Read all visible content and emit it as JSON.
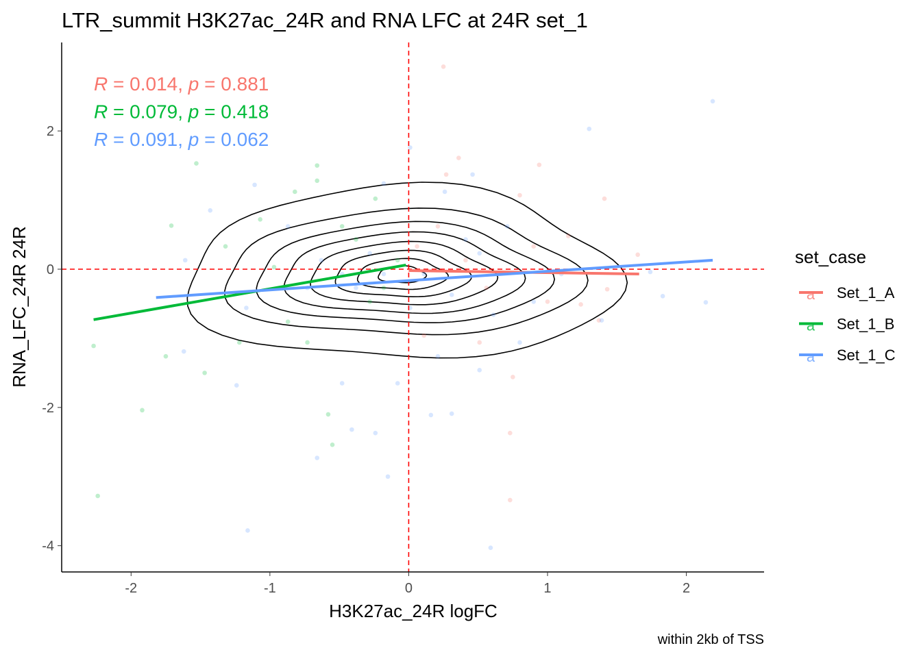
{
  "chart_data": {
    "type": "scatter",
    "title": "LTR_summit H3K27ac_24R and RNA LFC at 24R set_1",
    "xlabel": "H3K27ac_24R logFC",
    "ylabel": "RNA_LFC_24R 24R",
    "caption": "within 2kb of TSS",
    "xlim": [
      -2.5,
      2.56
    ],
    "ylim": [
      -4.38,
      3.28
    ],
    "xticks": [
      -2,
      -1,
      0,
      1,
      2
    ],
    "yticks": [
      2,
      0,
      -2,
      -4
    ],
    "xtick_labels": [
      "-2",
      "-1",
      "0",
      "1",
      "2"
    ],
    "ytick_labels": [
      "2",
      "0",
      "-2",
      "-4"
    ],
    "grid": false,
    "reference_lines": {
      "x": 0,
      "y": 0,
      "color": "#FF0000"
    },
    "legend": {
      "title": "set_case",
      "placement": "right",
      "glyph": "a",
      "entries": [
        "Set_1_A",
        "Set_1_B",
        "Set_1_C"
      ]
    },
    "stats": [
      {
        "R_label": "R",
        "R": "0.014",
        "p_label": "p",
        "p": "0.881",
        "eq": " = ",
        "sep": ", "
      },
      {
        "R_label": "R",
        "R": "0.079",
        "p_label": "p",
        "p": "0.418",
        "eq": " = ",
        "sep": ", "
      },
      {
        "R_label": "R",
        "R": "0.091",
        "p_label": "p",
        "p": "0.062",
        "eq": " = ",
        "sep": ", "
      }
    ],
    "contour": {
      "center": [
        -0.05,
        -0.08
      ],
      "levels": [
        {
          "rx": 1.55,
          "ry": 1.25
        },
        {
          "rx": 1.28,
          "ry": 0.9
        },
        {
          "rx": 1.05,
          "ry": 0.72
        },
        {
          "rx": 0.85,
          "ry": 0.58
        },
        {
          "rx": 0.66,
          "ry": 0.45
        },
        {
          "rx": 0.48,
          "ry": 0.33
        },
        {
          "rx": 0.32,
          "ry": 0.22
        },
        {
          "rx": 0.17,
          "ry": 0.12
        }
      ]
    },
    "series": [
      {
        "name": "Set_1_A",
        "color": "#F8766D",
        "line": [
          [
            0,
            -0.02
          ],
          [
            1.66,
            -0.07
          ]
        ],
        "points": [
          [
            0.25,
            2.93
          ],
          [
            0.36,
            1.61
          ],
          [
            0.94,
            1.51
          ],
          [
            1.41,
            1.02
          ],
          [
            0.73,
            -2.37
          ],
          [
            0.73,
            -3.34
          ],
          [
            0.75,
            -1.56
          ],
          [
            1.43,
            -0.29
          ],
          [
            1.65,
            0.21
          ],
          [
            0.27,
            1.37
          ],
          [
            0.8,
            1.07
          ],
          [
            1.15,
            0.48
          ],
          [
            1.0,
            -0.47
          ],
          [
            0.51,
            -1.06
          ],
          [
            0.11,
            -0.96
          ],
          [
            0.21,
            0.62
          ],
          [
            0.56,
            -0.27
          ],
          [
            0.9,
            0.33
          ],
          [
            0.41,
            0.13
          ],
          [
            0.06,
            0.33
          ],
          [
            1.24,
            -0.51
          ],
          [
            1.37,
            -0.74
          ]
        ]
      },
      {
        "name": "Set_1_B",
        "color": "#00BA38",
        "line": [
          [
            -2.27,
            -0.73
          ],
          [
            -0.02,
            0.06
          ]
        ],
        "points": [
          [
            -2.27,
            -1.11
          ],
          [
            -2.24,
            -3.28
          ],
          [
            -1.92,
            -2.04
          ],
          [
            -1.75,
            -1.26
          ],
          [
            -1.53,
            1.53
          ],
          [
            -1.47,
            -1.5
          ],
          [
            -1.71,
            0.63
          ],
          [
            -0.66,
            1.5
          ],
          [
            -0.66,
            1.28
          ],
          [
            -0.82,
            1.12
          ],
          [
            -0.55,
            -2.54
          ],
          [
            -0.58,
            -2.1
          ],
          [
            -0.24,
            1.02
          ],
          [
            -0.97,
            0.03
          ],
          [
            -1.22,
            -1.06
          ],
          [
            -0.73,
            -1.06
          ],
          [
            -0.38,
            0.43
          ],
          [
            -0.18,
            -0.27
          ],
          [
            -0.87,
            -0.76
          ],
          [
            -1.07,
            0.72
          ],
          [
            -0.48,
            0.62
          ],
          [
            -0.28,
            -0.47
          ],
          [
            -1.32,
            0.33
          ],
          [
            -0.08,
            0.13
          ]
        ]
      },
      {
        "name": "Set_1_C",
        "color": "#619CFF",
        "line": [
          [
            -1.82,
            -0.41
          ],
          [
            2.19,
            0.13
          ]
        ],
        "points": [
          [
            2.19,
            2.43
          ],
          [
            1.3,
            2.03
          ],
          [
            0.01,
            1.76
          ],
          [
            -1.11,
            1.22
          ],
          [
            -1.43,
            0.85
          ],
          [
            0.46,
            1.37
          ],
          [
            -1.16,
            -3.78
          ],
          [
            0.59,
            -4.03
          ],
          [
            -0.15,
            -3.0
          ],
          [
            -0.24,
            -2.37
          ],
          [
            -0.66,
            -2.73
          ],
          [
            -0.41,
            -2.32
          ],
          [
            0.16,
            -2.11
          ],
          [
            0.31,
            -2.09
          ],
          [
            -1.24,
            -1.68
          ],
          [
            -1.62,
            -1.19
          ],
          [
            1.83,
            -0.39
          ],
          [
            2.14,
            -0.48
          ],
          [
            1.74,
            -0.04
          ],
          [
            1.39,
            -0.74
          ],
          [
            -0.18,
            1.24
          ],
          [
            0.26,
            1.12
          ],
          [
            -0.63,
            0.13
          ],
          [
            -0.38,
            -0.27
          ],
          [
            0.01,
            -0.56
          ],
          [
            0.31,
            -0.37
          ],
          [
            0.51,
            0.23
          ],
          [
            0.71,
            0.62
          ],
          [
            -0.28,
            0.23
          ],
          [
            -0.87,
            0.62
          ],
          [
            -1.17,
            -0.56
          ],
          [
            -0.73,
            -0.27
          ],
          [
            0.21,
            -1.26
          ],
          [
            0.51,
            -1.46
          ],
          [
            0.8,
            -1.06
          ],
          [
            1.1,
            -0.07
          ],
          [
            -0.08,
            -1.65
          ],
          [
            -0.48,
            -1.65
          ],
          [
            -1.61,
            0.13
          ],
          [
            0.11,
            -0.07
          ],
          [
            -0.18,
            -0.07
          ],
          [
            -0.48,
            -0.07
          ],
          [
            0.41,
            0.43
          ],
          [
            0.61,
            -0.66
          ],
          [
            0.9,
            -0.47
          ]
        ]
      }
    ]
  }
}
